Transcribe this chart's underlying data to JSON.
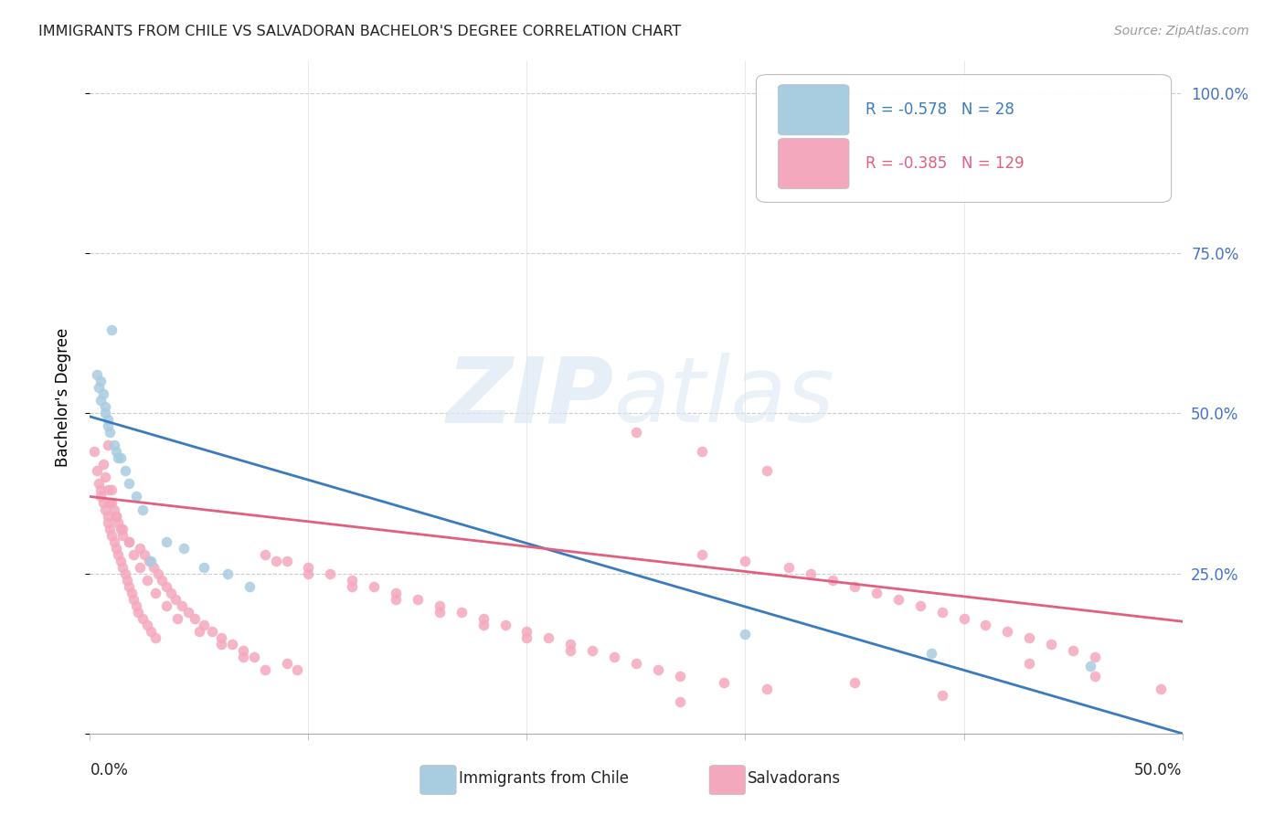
{
  "title": "IMMIGRANTS FROM CHILE VS SALVADORAN BACHELOR'S DEGREE CORRELATION CHART",
  "source": "Source: ZipAtlas.com",
  "ylabel": "Bachelor's Degree",
  "xlim": [
    0.0,
    0.5
  ],
  "ylim": [
    0.0,
    1.05
  ],
  "chile_R": -0.578,
  "chile_N": 28,
  "salv_R": -0.385,
  "salv_N": 129,
  "chile_color": "#a8cce0",
  "salv_color": "#f4a8be",
  "chile_line_color": "#3a7abf",
  "salv_line_color": "#e06080",
  "legend_label_chile": "Immigrants from Chile",
  "legend_label_salv": "Salvadorans",
  "chile_line_x0": 0.0,
  "chile_line_y0": 0.495,
  "chile_line_x1": 0.5,
  "chile_line_y1": 0.0,
  "salv_line_x0": 0.0,
  "salv_line_y0": 0.37,
  "salv_line_x1": 0.5,
  "salv_line_y1": 0.175,
  "chile_x": [
    0.003,
    0.004,
    0.005,
    0.005,
    0.006,
    0.007,
    0.007,
    0.008,
    0.008,
    0.009,
    0.01,
    0.011,
    0.012,
    0.013,
    0.014,
    0.016,
    0.018,
    0.021,
    0.024,
    0.028,
    0.035,
    0.043,
    0.052,
    0.063,
    0.073,
    0.3,
    0.385,
    0.458
  ],
  "chile_y": [
    0.56,
    0.54,
    0.55,
    0.52,
    0.53,
    0.51,
    0.5,
    0.49,
    0.48,
    0.47,
    0.63,
    0.45,
    0.44,
    0.43,
    0.43,
    0.41,
    0.39,
    0.37,
    0.35,
    0.27,
    0.3,
    0.29,
    0.26,
    0.25,
    0.23,
    0.155,
    0.125,
    0.105
  ],
  "salv_x": [
    0.002,
    0.003,
    0.004,
    0.005,
    0.005,
    0.006,
    0.006,
    0.007,
    0.007,
    0.008,
    0.008,
    0.008,
    0.009,
    0.009,
    0.01,
    0.01,
    0.011,
    0.011,
    0.012,
    0.012,
    0.013,
    0.013,
    0.014,
    0.014,
    0.015,
    0.015,
    0.016,
    0.017,
    0.018,
    0.018,
    0.019,
    0.02,
    0.021,
    0.022,
    0.023,
    0.024,
    0.025,
    0.026,
    0.027,
    0.028,
    0.029,
    0.03,
    0.031,
    0.033,
    0.035,
    0.037,
    0.039,
    0.042,
    0.045,
    0.048,
    0.052,
    0.056,
    0.06,
    0.065,
    0.07,
    0.075,
    0.08,
    0.085,
    0.09,
    0.095,
    0.1,
    0.11,
    0.12,
    0.13,
    0.14,
    0.15,
    0.16,
    0.17,
    0.18,
    0.19,
    0.2,
    0.21,
    0.22,
    0.23,
    0.24,
    0.25,
    0.26,
    0.27,
    0.28,
    0.29,
    0.3,
    0.31,
    0.32,
    0.33,
    0.34,
    0.35,
    0.36,
    0.37,
    0.38,
    0.39,
    0.4,
    0.41,
    0.42,
    0.43,
    0.44,
    0.45,
    0.46,
    0.008,
    0.01,
    0.012,
    0.015,
    0.018,
    0.02,
    0.023,
    0.026,
    0.03,
    0.035,
    0.04,
    0.05,
    0.06,
    0.07,
    0.08,
    0.09,
    0.1,
    0.12,
    0.14,
    0.16,
    0.18,
    0.2,
    0.22,
    0.25,
    0.28,
    0.31,
    0.35,
    0.39,
    0.43,
    0.46,
    0.49,
    0.27
  ],
  "salv_y": [
    0.44,
    0.41,
    0.39,
    0.38,
    0.37,
    0.36,
    0.42,
    0.35,
    0.4,
    0.34,
    0.33,
    0.45,
    0.32,
    0.36,
    0.31,
    0.38,
    0.3,
    0.35,
    0.29,
    0.34,
    0.28,
    0.33,
    0.27,
    0.32,
    0.26,
    0.31,
    0.25,
    0.24,
    0.23,
    0.3,
    0.22,
    0.21,
    0.2,
    0.19,
    0.29,
    0.18,
    0.28,
    0.17,
    0.27,
    0.16,
    0.26,
    0.15,
    0.25,
    0.24,
    0.23,
    0.22,
    0.21,
    0.2,
    0.19,
    0.18,
    0.17,
    0.16,
    0.15,
    0.14,
    0.13,
    0.12,
    0.28,
    0.27,
    0.11,
    0.1,
    0.26,
    0.25,
    0.24,
    0.23,
    0.22,
    0.21,
    0.2,
    0.19,
    0.18,
    0.17,
    0.16,
    0.15,
    0.14,
    0.13,
    0.12,
    0.11,
    0.1,
    0.09,
    0.28,
    0.08,
    0.27,
    0.07,
    0.26,
    0.25,
    0.24,
    0.23,
    0.22,
    0.21,
    0.2,
    0.19,
    0.18,
    0.17,
    0.16,
    0.15,
    0.14,
    0.13,
    0.12,
    0.38,
    0.36,
    0.34,
    0.32,
    0.3,
    0.28,
    0.26,
    0.24,
    0.22,
    0.2,
    0.18,
    0.16,
    0.14,
    0.12,
    0.1,
    0.27,
    0.25,
    0.23,
    0.21,
    0.19,
    0.17,
    0.15,
    0.13,
    0.47,
    0.44,
    0.41,
    0.08,
    0.06,
    0.11,
    0.09,
    0.07,
    0.05
  ]
}
